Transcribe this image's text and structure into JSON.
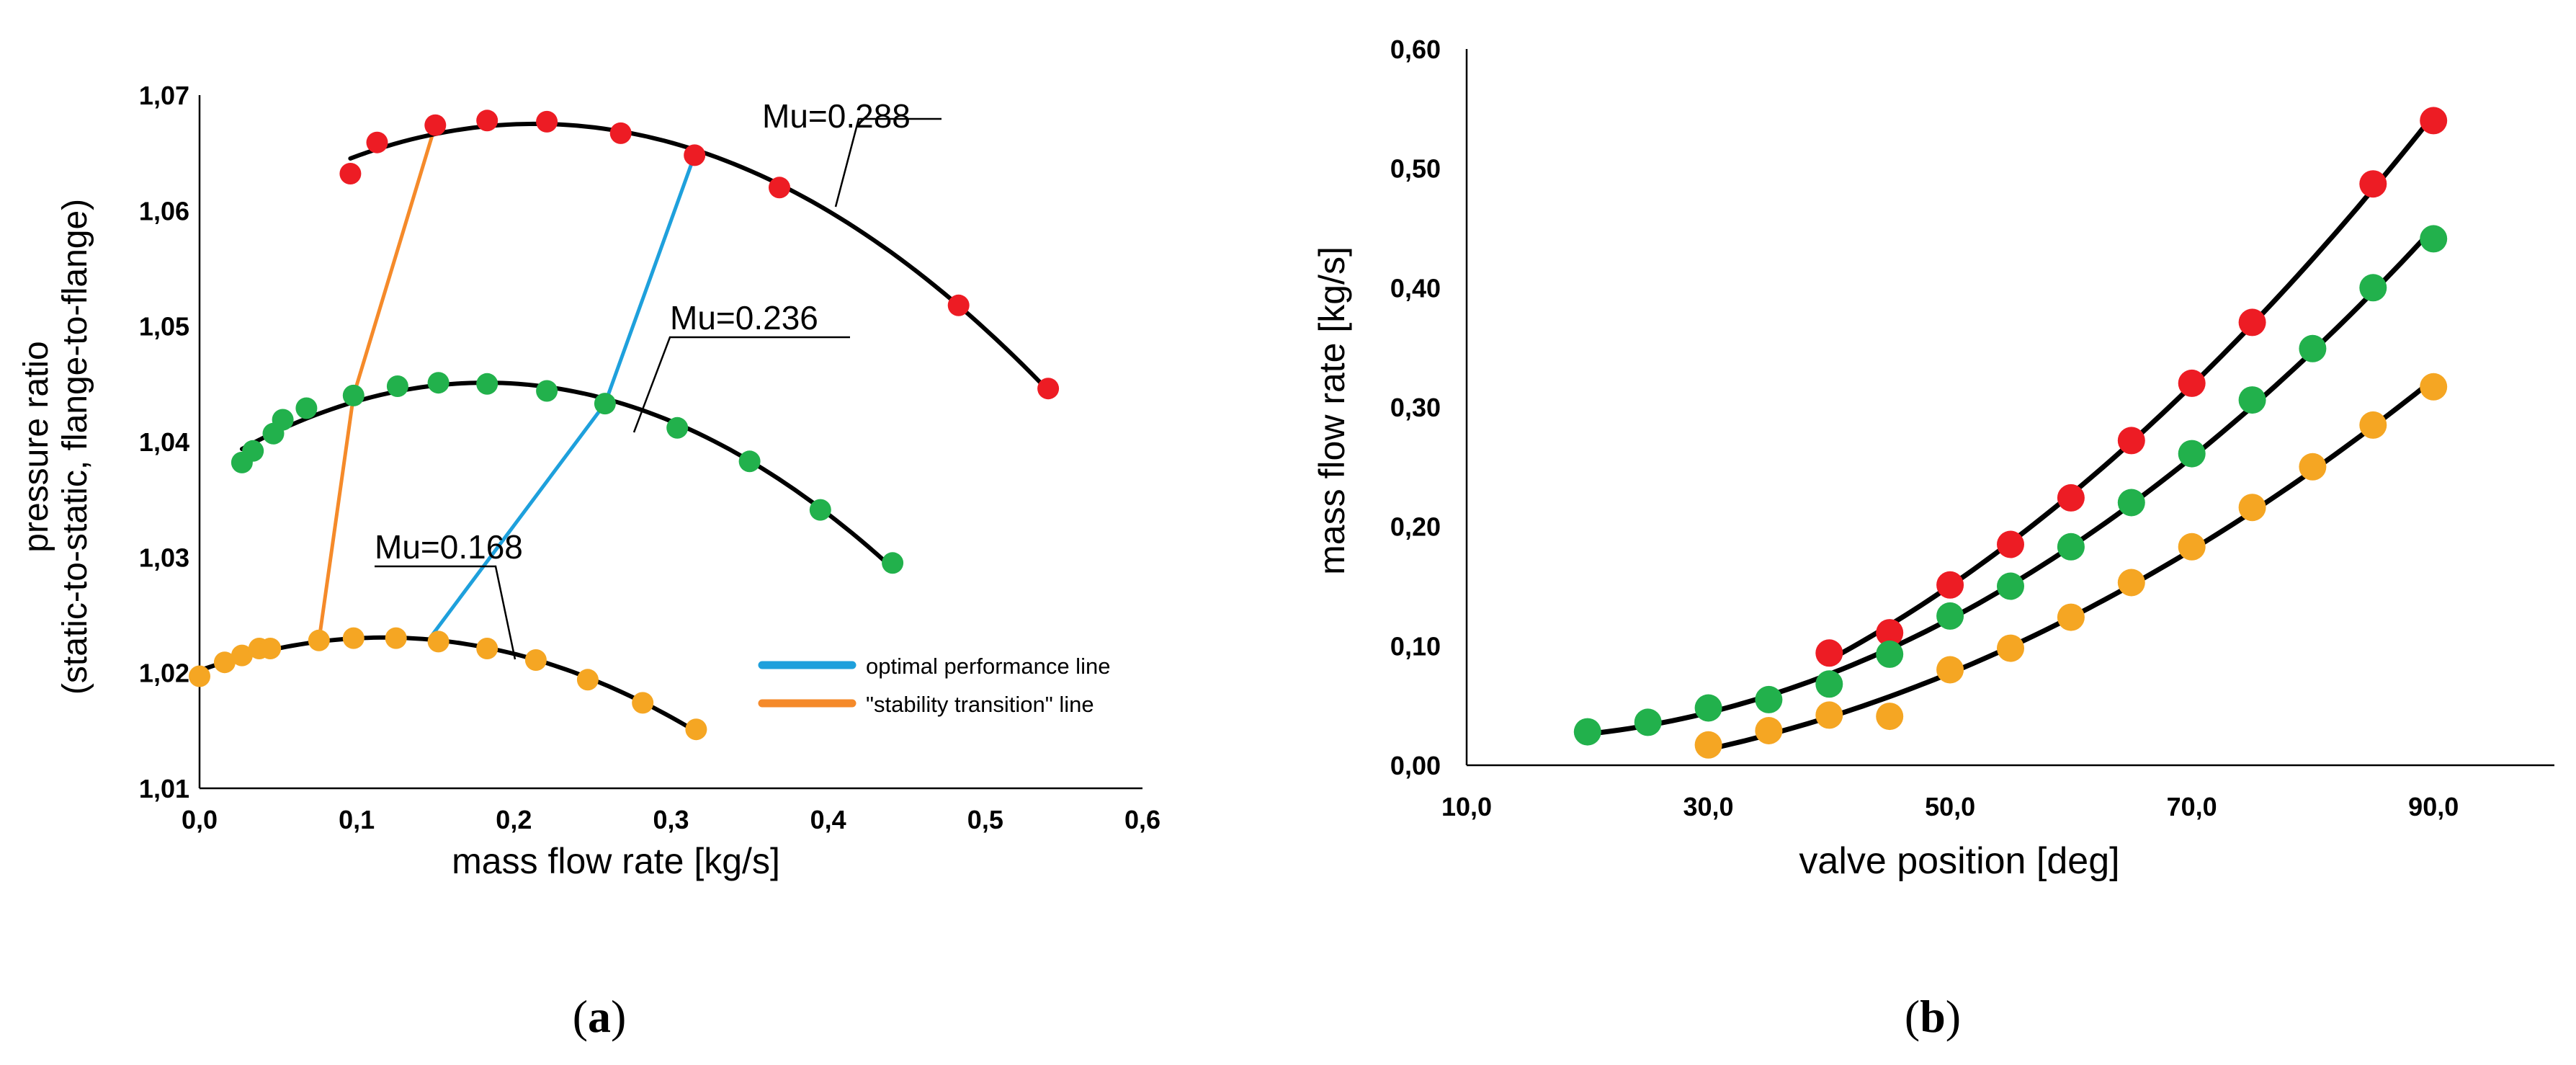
{
  "colors": {
    "red": "#ed1c24",
    "green": "#22b14c",
    "orange": "#f5a623",
    "curve": "#000000",
    "optimal_line": "#1ea0dc",
    "stability_line": "#f58a2a",
    "axis": "#000000"
  },
  "chart_data": [
    {
      "id": "a",
      "panel_label_open": "(",
      "panel_label_letter": "a",
      "panel_label_close": ")",
      "type": "scatter",
      "title": "",
      "xlabel": "mass flow rate [kg/s]",
      "ylabel_line1": "pressure ratio",
      "ylabel_line2": "(static-to-static, flange-to-flange)",
      "xlim": [
        0.0,
        0.6
      ],
      "ylim": [
        1.01,
        1.07
      ],
      "x_ticks": [
        0.0,
        0.1,
        0.2,
        0.3,
        0.4,
        0.5,
        0.6
      ],
      "x_tick_labels": [
        "0,0",
        "0,1",
        "0,2",
        "0,3",
        "0,4",
        "0,5",
        "0,6"
      ],
      "y_ticks": [
        1.01,
        1.02,
        1.03,
        1.04,
        1.05,
        1.06,
        1.07
      ],
      "y_tick_labels": [
        "1,01",
        "1,02",
        "1,03",
        "1,04",
        "1,05",
        "1,06",
        "1,07"
      ],
      "series": [
        {
          "name": "Mu=0.288",
          "label": "Mu=0.288",
          "color": "red",
          "points": [
            [
              0.096,
              1.0632
            ],
            [
              0.113,
              1.0659
            ],
            [
              0.15,
              1.0674
            ],
            [
              0.183,
              1.0678
            ],
            [
              0.221,
              1.0677
            ],
            [
              0.268,
              1.0667
            ],
            [
              0.315,
              1.0648
            ],
            [
              0.369,
              1.062
            ],
            [
              0.483,
              1.0518
            ],
            [
              0.54,
              1.0446
            ]
          ],
          "fit": {
            "type": "quadratic",
            "range": [
              0.096,
              0.54
            ]
          }
        },
        {
          "name": "Mu=0.236",
          "label": "Mu=0.236",
          "color": "green",
          "points": [
            [
              0.027,
              1.0382
            ],
            [
              0.034,
              1.0392
            ],
            [
              0.047,
              1.0407
            ],
            [
              0.053,
              1.0419
            ],
            [
              0.068,
              1.0429
            ],
            [
              0.098,
              1.044
            ],
            [
              0.126,
              1.0448
            ],
            [
              0.152,
              1.0451
            ],
            [
              0.183,
              1.045
            ],
            [
              0.221,
              1.0444
            ],
            [
              0.258,
              1.0433
            ],
            [
              0.304,
              1.0412
            ],
            [
              0.35,
              1.0383
            ],
            [
              0.395,
              1.0341
            ],
            [
              0.441,
              1.0295
            ]
          ],
          "fit": {
            "type": "quadratic",
            "range": [
              0.027,
              0.441
            ]
          }
        },
        {
          "name": "Mu=0.168",
          "label": "Mu=0.168",
          "color": "orange",
          "points": [
            [
              0.0,
              1.0197
            ],
            [
              0.016,
              1.0209
            ],
            [
              0.027,
              1.0215
            ],
            [
              0.038,
              1.0221
            ],
            [
              0.045,
              1.0221
            ],
            [
              0.076,
              1.0228
            ],
            [
              0.098,
              1.023
            ],
            [
              0.125,
              1.023
            ],
            [
              0.152,
              1.0227
            ],
            [
              0.183,
              1.0221
            ],
            [
              0.214,
              1.0211
            ],
            [
              0.247,
              1.0194
            ],
            [
              0.282,
              1.0174
            ],
            [
              0.316,
              1.0151
            ]
          ],
          "fit": {
            "type": "quadratic",
            "range": [
              0.0,
              0.316
            ]
          }
        }
      ],
      "reference_lines": [
        {
          "name": "optimal performance line",
          "color": "optimal_line",
          "points": [
            [
              0.146,
              1.0229
            ],
            [
              0.258,
              1.0433
            ],
            [
              0.315,
              1.0648
            ]
          ]
        },
        {
          "name": "\"stability transition\" line",
          "color": "stability_line",
          "points": [
            [
              0.076,
              1.0228
            ],
            [
              0.098,
              1.044
            ],
            [
              0.15,
              1.0674
            ]
          ]
        }
      ],
      "legend": {
        "placement": "bottom-right",
        "entries": [
          {
            "label": "optimal performance line",
            "color": "optimal_line"
          },
          {
            "label": "\"stability transition\" line",
            "color": "stability_line"
          }
        ]
      }
    },
    {
      "id": "b",
      "panel_label_open": "(",
      "panel_label_letter": "b",
      "panel_label_close": ")",
      "type": "scatter",
      "title": "",
      "xlabel": "valve position [deg]",
      "ylabel": "mass flow rate [kg/s]",
      "xlim": [
        10.0,
        100.0
      ],
      "ylim": [
        0.0,
        0.6
      ],
      "x_ticks": [
        10.0,
        30.0,
        50.0,
        70.0,
        90.0
      ],
      "x_tick_labels": [
        "10,0",
        "30,0",
        "50,0",
        "70,0",
        "90,0"
      ],
      "y_ticks": [
        0.0,
        0.1,
        0.2,
        0.3,
        0.4,
        0.5,
        0.6
      ],
      "y_tick_labels": [
        "0,00",
        "0,10",
        "0,20",
        "0,30",
        "0,40",
        "0,50",
        "0,60"
      ],
      "series": [
        {
          "name": "Mu=0.288",
          "color": "red",
          "points": [
            [
              40,
              0.094
            ],
            [
              45,
              0.111
            ],
            [
              50,
              0.151
            ],
            [
              55,
              0.185
            ],
            [
              60,
              0.224
            ],
            [
              65,
              0.272
            ],
            [
              70,
              0.32
            ],
            [
              75,
              0.371
            ],
            [
              85,
              0.487
            ],
            [
              90,
              0.54
            ]
          ],
          "fit": {
            "type": "quadratic",
            "range": [
              40,
              90
            ]
          }
        },
        {
          "name": "Mu=0.236",
          "color": "green",
          "points": [
            [
              20,
              0.028
            ],
            [
              25,
              0.036
            ],
            [
              30,
              0.048
            ],
            [
              35,
              0.055
            ],
            [
              40,
              0.068
            ],
            [
              45,
              0.093
            ],
            [
              50,
              0.125
            ],
            [
              55,
              0.15
            ],
            [
              60,
              0.183
            ],
            [
              65,
              0.22
            ],
            [
              70,
              0.261
            ],
            [
              75,
              0.306
            ],
            [
              80,
              0.349
            ],
            [
              85,
              0.4
            ],
            [
              90,
              0.441
            ]
          ],
          "fit": {
            "type": "quadratic",
            "range": [
              20,
              90
            ]
          }
        },
        {
          "name": "Mu=0.168",
          "color": "orange",
          "points": [
            [
              30,
              0.017
            ],
            [
              35,
              0.029
            ],
            [
              40,
              0.042
            ],
            [
              45,
              0.041
            ],
            [
              50,
              0.08
            ],
            [
              55,
              0.098
            ],
            [
              60,
              0.124
            ],
            [
              65,
              0.153
            ],
            [
              70,
              0.183
            ],
            [
              75,
              0.216
            ],
            [
              80,
              0.25
            ],
            [
              85,
              0.285
            ],
            [
              90,
              0.317
            ]
          ],
          "fit": {
            "type": "quadratic",
            "range": [
              30,
              90
            ]
          }
        }
      ]
    }
  ]
}
